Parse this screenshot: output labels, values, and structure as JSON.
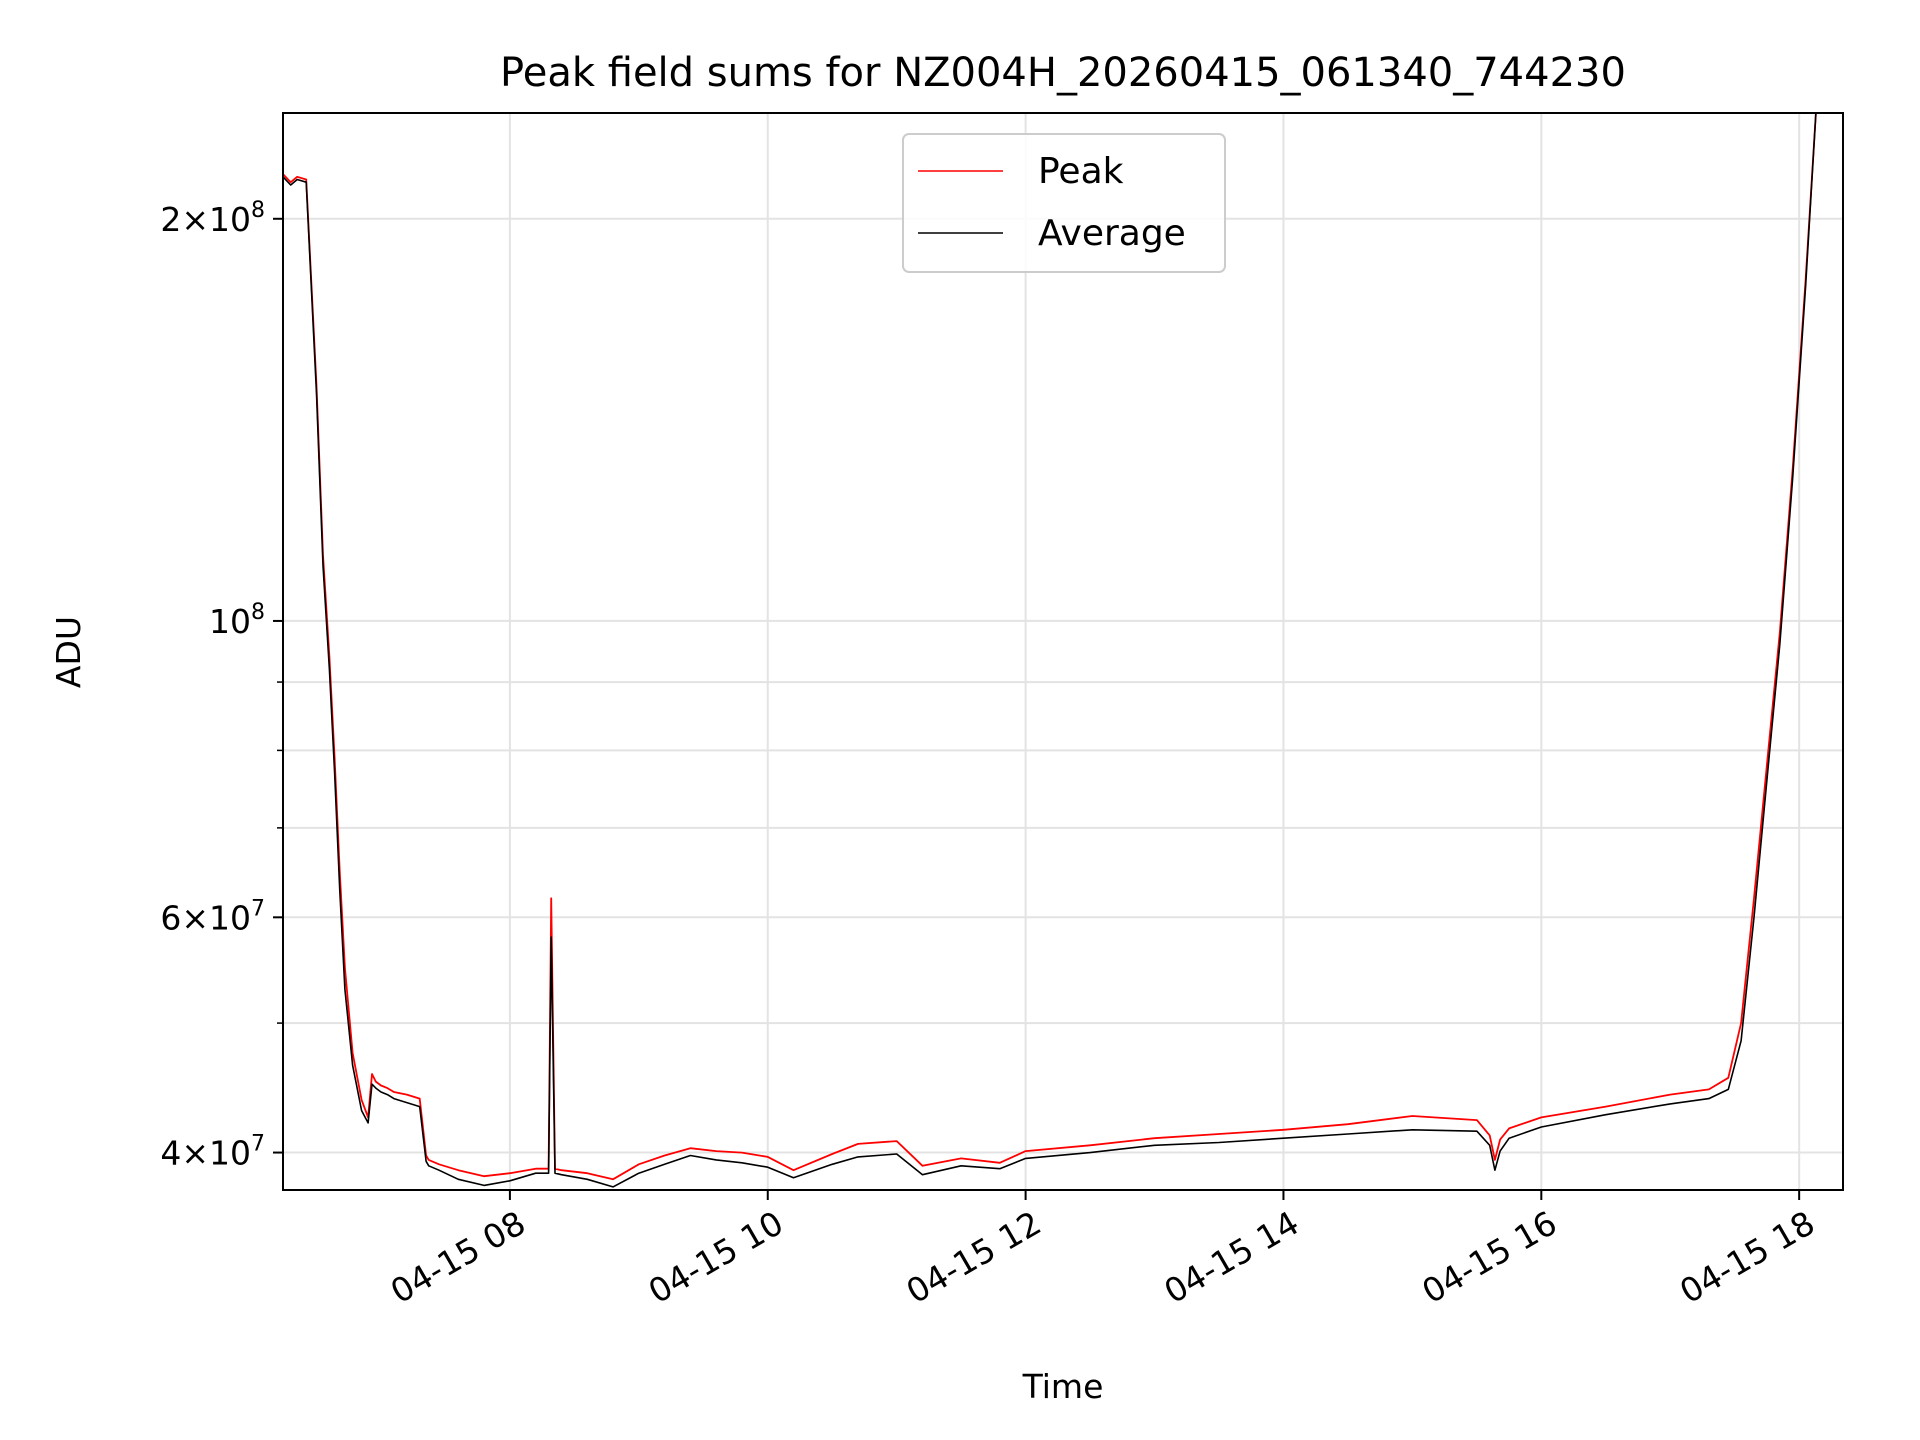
{
  "chart_data": {
    "type": "line",
    "title": "Peak field sums for NZ004H_20260415_061340_744230",
    "xlabel": "Time",
    "ylabel": "ADU",
    "yscale": "log",
    "ylim": [
      37500000,
      240000000
    ],
    "xlim_hours": [
      6.24,
      18.34
    ],
    "grid": true,
    "legend_position": "upper-center",
    "x_ticks": [
      {
        "hour": 8,
        "label": "04-15 08"
      },
      {
        "hour": 10,
        "label": "04-15 10"
      },
      {
        "hour": 12,
        "label": "04-15 12"
      },
      {
        "hour": 14,
        "label": "04-15 14"
      },
      {
        "hour": 16,
        "label": "04-15 16"
      },
      {
        "hour": 18,
        "label": "04-15 18"
      }
    ],
    "y_ticks_major": [
      {
        "value": 40000000,
        "base": "4",
        "exp": "7"
      },
      {
        "value": 60000000,
        "base": "6",
        "exp": "7"
      },
      {
        "value": 100000000,
        "base": "",
        "exp": "8"
      },
      {
        "value": 200000000,
        "base": "2",
        "exp": "8"
      }
    ],
    "y_grid_minor": [
      50000000,
      70000000,
      80000000,
      90000000
    ],
    "series": [
      {
        "name": "Peak",
        "color": "#ff0000",
        "x_hours": [
          6.24,
          6.3,
          6.35,
          6.42,
          6.5,
          6.55,
          6.6,
          6.64,
          6.68,
          6.72,
          6.78,
          6.85,
          6.9,
          6.93,
          6.96,
          7.0,
          7.05,
          7.1,
          7.2,
          7.3,
          7.35,
          7.37,
          7.45,
          7.6,
          7.8,
          8.0,
          8.2,
          8.3,
          8.32,
          8.35,
          8.4,
          8.6,
          8.8,
          9.0,
          9.2,
          9.4,
          9.6,
          9.8,
          10.0,
          10.2,
          10.5,
          10.7,
          11.0,
          11.2,
          11.5,
          11.8,
          12.0,
          12.5,
          13.0,
          13.5,
          14.0,
          14.5,
          15.0,
          15.5,
          15.6,
          15.64,
          15.68,
          15.75,
          16.0,
          16.5,
          17.0,
          17.3,
          17.45,
          17.55,
          17.65,
          17.75,
          17.85,
          17.95,
          18.05,
          18.13
        ],
        "values": [
          216000000,
          213000000,
          215000000,
          214000000,
          150000000,
          112000000,
          94000000,
          79000000,
          65000000,
          55000000,
          47500000,
          43800000,
          42500000,
          45800000,
          45200000,
          44900000,
          44700000,
          44400000,
          44200000,
          43900000,
          39800000,
          39500000,
          39200000,
          38800000,
          38400000,
          38600000,
          38900000,
          38900000,
          62000000,
          38900000,
          38800000,
          38600000,
          38200000,
          39200000,
          39800000,
          40300000,
          40100000,
          40000000,
          39700000,
          38800000,
          39900000,
          40600000,
          40800000,
          39100000,
          39600000,
          39300000,
          40100000,
          40500000,
          41000000,
          41300000,
          41600000,
          42000000,
          42600000,
          42300000,
          41200000,
          39500000,
          40900000,
          41700000,
          42500000,
          43300000,
          44200000,
          44600000,
          45500000,
          50000000,
          62000000,
          78000000,
          98000000,
          130000000,
          180000000,
          240000000
        ]
      },
      {
        "name": "Average",
        "color": "#000000",
        "x_hours": [
          6.24,
          6.3,
          6.35,
          6.42,
          6.5,
          6.55,
          6.6,
          6.64,
          6.68,
          6.72,
          6.78,
          6.85,
          6.9,
          6.93,
          6.96,
          7.0,
          7.05,
          7.1,
          7.2,
          7.3,
          7.35,
          7.37,
          7.45,
          7.6,
          7.8,
          8.0,
          8.2,
          8.3,
          8.32,
          8.35,
          8.4,
          8.6,
          8.8,
          9.0,
          9.2,
          9.4,
          9.6,
          9.8,
          10.0,
          10.2,
          10.5,
          10.7,
          11.0,
          11.2,
          11.5,
          11.8,
          12.0,
          12.5,
          13.0,
          13.5,
          14.0,
          14.5,
          15.0,
          15.5,
          15.6,
          15.64,
          15.68,
          15.75,
          16.0,
          16.5,
          17.0,
          17.3,
          17.45,
          17.55,
          17.65,
          17.75,
          17.85,
          17.95,
          18.05,
          18.13
        ],
        "values": [
          215000000,
          212000000,
          214000000,
          213000000,
          148000000,
          110000000,
          92000000,
          77000000,
          63000000,
          53000000,
          46500000,
          43000000,
          42100000,
          45000000,
          44700000,
          44400000,
          44200000,
          43900000,
          43600000,
          43300000,
          39400000,
          39100000,
          38800000,
          38200000,
          37800000,
          38100000,
          38600000,
          38600000,
          58000000,
          38600000,
          38500000,
          38200000,
          37700000,
          38600000,
          39200000,
          39800000,
          39500000,
          39300000,
          39000000,
          38300000,
          39200000,
          39700000,
          39900000,
          38500000,
          39100000,
          38900000,
          39600000,
          40000000,
          40500000,
          40700000,
          41000000,
          41300000,
          41600000,
          41500000,
          40500000,
          38800000,
          40100000,
          41000000,
          41800000,
          42700000,
          43500000,
          43900000,
          44600000,
          48500000,
          60000000,
          76000000,
          96000000,
          128000000,
          178000000,
          240000000
        ]
      }
    ]
  }
}
